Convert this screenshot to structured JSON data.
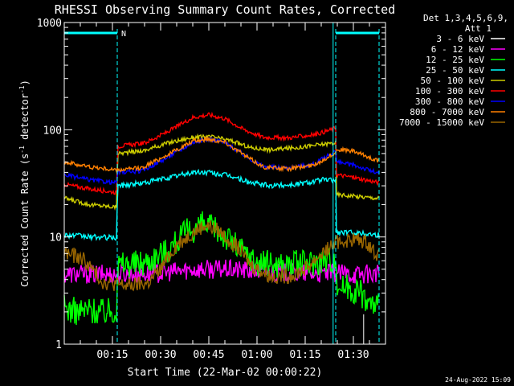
{
  "chart_data": {
    "type": "line",
    "title": "RHESSI Observing Summary Count Rates, Corrected",
    "xlabel": "Start Time (22-Mar-02 00:00:22)",
    "ylabel": "Corrected Count Rate (s",
    "ylabel_sup1": "-1",
    "ylabel_mid": " detector",
    "ylabel_sup2": "-1",
    "ylabel_end": ")",
    "yscale": "log",
    "ylim": [
      1,
      1000
    ],
    "xlim": [
      0,
      100
    ],
    "xunit": "minutes",
    "yticks": [
      1,
      10,
      100,
      1000
    ],
    "yticklabels": [
      "1",
      "10",
      "100",
      "1000"
    ],
    "xticks": [
      15,
      30,
      45,
      60,
      75,
      90
    ],
    "xticklabels": [
      "00:15",
      "00:30",
      "00:45",
      "01:00",
      "01:15",
      "01:30"
    ],
    "footer": "24-Aug-2022 15:09",
    "grid": false,
    "legend_position": "top-right outside",
    "legend_header": [
      "Det 1,3,4,5,6,9,",
      "Att 1"
    ],
    "attenuator_bar": {
      "color": "#00ffff",
      "label": "N",
      "intervals": [
        [
          0,
          16.5
        ],
        [
          84.5,
          98
        ]
      ]
    },
    "attenuator_lines": [
      16.5,
      84.5,
      98
    ],
    "solid_line_x": 83.7,
    "series": [
      {
        "name": "3 - 6 keV",
        "color": "#ffffff",
        "points": [
          [
            93.2,
            1
          ],
          [
            93.2,
            1.9
          ]
        ]
      },
      {
        "name": "6 - 12 keV",
        "color": "#ff00ff",
        "points": [
          [
            0,
            4.5
          ],
          [
            8,
            4.5
          ],
          [
            16.5,
            4.5
          ],
          [
            20,
            4.5
          ],
          [
            30,
            4.6
          ],
          [
            40,
            5.0
          ],
          [
            50,
            5.0
          ],
          [
            60,
            4.8
          ],
          [
            70,
            4.6
          ],
          [
            80,
            4.5
          ],
          [
            84.5,
            4.6
          ],
          [
            90,
            4.5
          ],
          [
            98,
            4.5
          ]
        ]
      },
      {
        "name": "12 - 25 keV",
        "color": "#00ff00",
        "points": [
          [
            0,
            2.2
          ],
          [
            4,
            2.0
          ],
          [
            8,
            2.1
          ],
          [
            12,
            2.0
          ],
          [
            16.3,
            2.1
          ],
          [
            16.6,
            5.5
          ],
          [
            25,
            5.8
          ],
          [
            32,
            7.5
          ],
          [
            38,
            11
          ],
          [
            43,
            13
          ],
          [
            48,
            11.5
          ],
          [
            54,
            8
          ],
          [
            60,
            5.8
          ],
          [
            68,
            5.5
          ],
          [
            75,
            5.7
          ],
          [
            82,
            6.2
          ],
          [
            84.5,
            6.3
          ],
          [
            84.7,
            3.6
          ],
          [
            88,
            3.4
          ],
          [
            92,
            3.1
          ],
          [
            95,
            2.4
          ],
          [
            98,
            2.3
          ]
        ]
      },
      {
        "name": "25 - 50 keV",
        "color": "#00ffff",
        "points": [
          [
            0,
            10.5
          ],
          [
            8,
            10
          ],
          [
            16.3,
            9.8
          ],
          [
            16.6,
            30
          ],
          [
            25,
            32
          ],
          [
            33,
            36
          ],
          [
            40,
            40
          ],
          [
            45,
            40
          ],
          [
            52,
            37
          ],
          [
            58,
            32
          ],
          [
            64,
            30
          ],
          [
            72,
            31
          ],
          [
            80,
            34
          ],
          [
            84.5,
            34
          ],
          [
            84.7,
            11
          ],
          [
            90,
            11
          ],
          [
            98,
            10.5
          ]
        ]
      },
      {
        "name": "50 - 100 keV",
        "color": "#cccc00",
        "points": [
          [
            0,
            23
          ],
          [
            8,
            20
          ],
          [
            16.3,
            19
          ],
          [
            16.6,
            60
          ],
          [
            25,
            64
          ],
          [
            32,
            75
          ],
          [
            40,
            85
          ],
          [
            46,
            86
          ],
          [
            52,
            79
          ],
          [
            58,
            68
          ],
          [
            64,
            65
          ],
          [
            72,
            68
          ],
          [
            80,
            73
          ],
          [
            84.5,
            76
          ],
          [
            84.7,
            25
          ],
          [
            90,
            24
          ],
          [
            98,
            23
          ]
        ]
      },
      {
        "name": "100 - 300 keV",
        "color": "#ff0000",
        "points": [
          [
            0,
            31
          ],
          [
            8,
            28
          ],
          [
            16.3,
            26
          ],
          [
            16.6,
            70
          ],
          [
            25,
            75
          ],
          [
            32,
            95
          ],
          [
            40,
            130
          ],
          [
            45,
            138
          ],
          [
            50,
            127
          ],
          [
            56,
            100
          ],
          [
            62,
            85
          ],
          [
            70,
            84
          ],
          [
            78,
            90
          ],
          [
            83,
            100
          ],
          [
            84.5,
            104
          ],
          [
            84.7,
            38
          ],
          [
            90,
            36
          ],
          [
            98,
            32
          ]
        ]
      },
      {
        "name": "300 - 800 keV",
        "color": "#0000ff",
        "points": [
          [
            0,
            38
          ],
          [
            8,
            34
          ],
          [
            16.3,
            32
          ],
          [
            16.6,
            40
          ],
          [
            24,
            41
          ],
          [
            32,
            55
          ],
          [
            40,
            76
          ],
          [
            45,
            82
          ],
          [
            50,
            76
          ],
          [
            56,
            58
          ],
          [
            62,
            45
          ],
          [
            70,
            44
          ],
          [
            78,
            48
          ],
          [
            83,
            60
          ],
          [
            84.5,
            64
          ],
          [
            84.7,
            50
          ],
          [
            90,
            47
          ],
          [
            98,
            39
          ]
        ]
      },
      {
        "name": "800 - 7000 keV",
        "color": "#ff8000",
        "points": [
          [
            0,
            50
          ],
          [
            8,
            45
          ],
          [
            16.3,
            42
          ],
          [
            16.6,
            42
          ],
          [
            24,
            44
          ],
          [
            32,
            58
          ],
          [
            40,
            78
          ],
          [
            45,
            82
          ],
          [
            50,
            77
          ],
          [
            56,
            58
          ],
          [
            62,
            45
          ],
          [
            70,
            43
          ],
          [
            78,
            47
          ],
          [
            83,
            58
          ],
          [
            84.5,
            61
          ],
          [
            84.7,
            66
          ],
          [
            90,
            63
          ],
          [
            98,
            51
          ]
        ]
      },
      {
        "name": "7000 - 15000 keV",
        "color": "#996600",
        "points": [
          [
            0,
            7.2
          ],
          [
            6,
            6.2
          ],
          [
            12,
            3.8
          ],
          [
            20,
            3.5
          ],
          [
            26,
            3.7
          ],
          [
            30,
            5
          ],
          [
            35,
            8.5
          ],
          [
            40,
            11
          ],
          [
            44,
            13
          ],
          [
            48,
            11.5
          ],
          [
            54,
            8
          ],
          [
            58,
            5.5
          ],
          [
            64,
            4.3
          ],
          [
            70,
            4.3
          ],
          [
            75,
            5
          ],
          [
            80,
            7
          ],
          [
            85,
            9
          ],
          [
            90,
            9.5
          ],
          [
            94,
            9
          ],
          [
            98,
            6.5
          ]
        ]
      }
    ]
  }
}
